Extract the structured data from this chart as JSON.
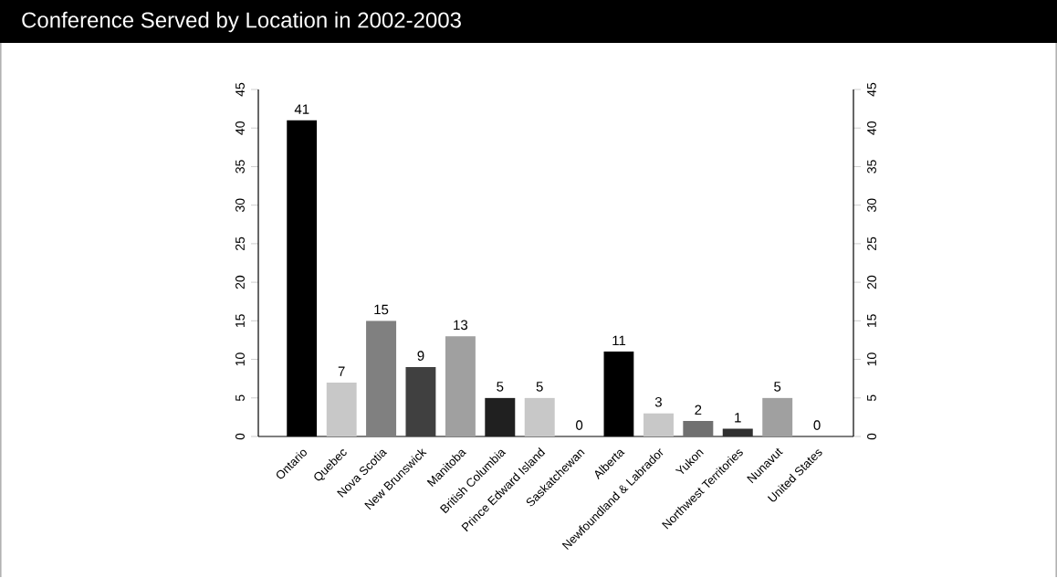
{
  "chart_data": {
    "type": "bar",
    "title": "Conference Served by Location in 2002-2003",
    "categories": [
      "Ontario",
      "Quebec",
      "Nova Scotia",
      "New Brunswick",
      "Manitoba",
      "British Columbia",
      "Prince Edward Island",
      "Saskatchewan",
      "Alberta",
      "Newfoundland & Labrador",
      "Yukon",
      "Northwest Territories",
      "Nunavut",
      "United States"
    ],
    "values": [
      41,
      7,
      15,
      9,
      13,
      5,
      5,
      0,
      11,
      3,
      2,
      1,
      5,
      0
    ],
    "colors": [
      "#000000",
      "#c8c8c8",
      "#808080",
      "#404040",
      "#a0a0a0",
      "#202020",
      "#c8c8c8",
      "#808080",
      "#000000",
      "#c8c8c8",
      "#707070",
      "#303030",
      "#a0a0a0",
      "#606060"
    ],
    "ylim": [
      0,
      45
    ],
    "yticks": [
      0,
      5,
      10,
      15,
      20,
      25,
      30,
      35,
      40,
      45
    ],
    "y2lim": [
      0,
      45
    ],
    "y2ticks": [
      0,
      5,
      10,
      15,
      20,
      25,
      30,
      35,
      40,
      45
    ],
    "data_labels": true,
    "grid": false
  }
}
